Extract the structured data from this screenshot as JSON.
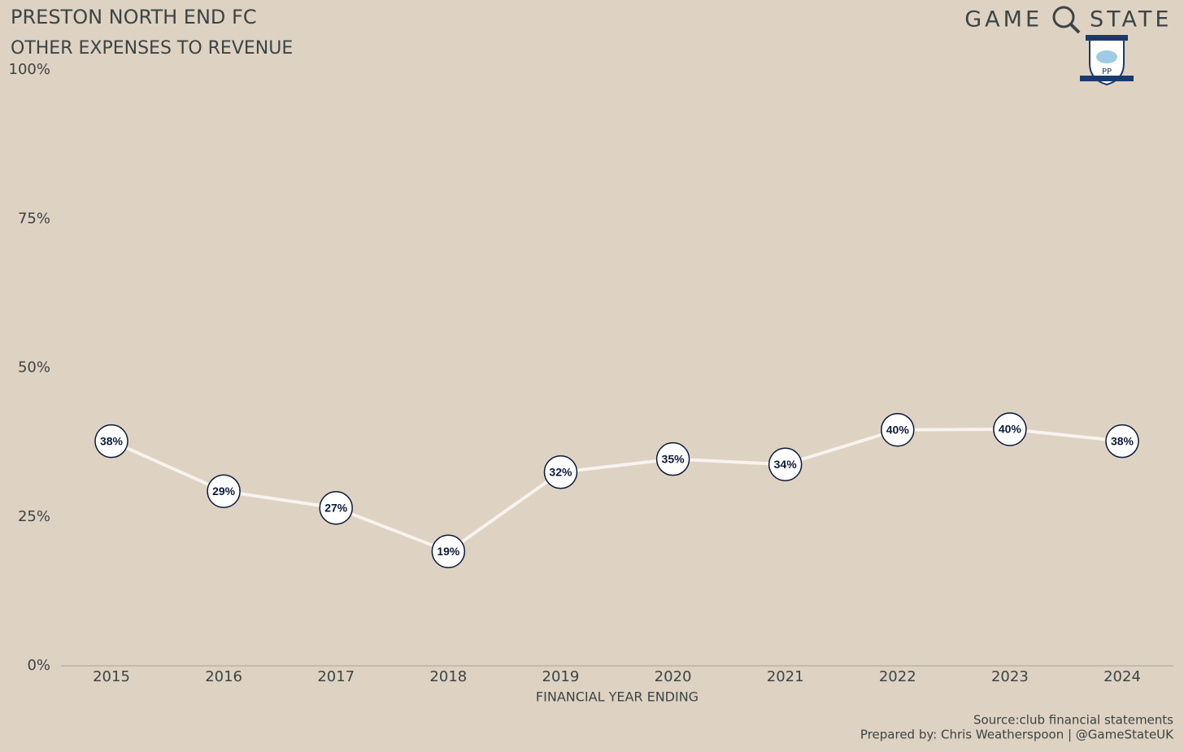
{
  "chart_data": {
    "type": "line",
    "title": "PRESTON NORTH END FC",
    "subtitle": "OTHER EXPENSES TO REVENUE",
    "xlabel": "FINANCIAL YEAR ENDING",
    "source": "Source:club financial statements",
    "credit": "Prepared by: Chris Weatherspoon | @GameStateUK",
    "brand": [
      "GAME",
      "STATE"
    ],
    "crest": "PP",
    "categories": [
      "2015",
      "2016",
      "2017",
      "2018",
      "2019",
      "2020",
      "2021",
      "2022",
      "2023",
      "2024"
    ],
    "series": [
      {
        "name": "Other expenses to revenue",
        "color": "#f7f3ee",
        "values": [
          37.7,
          29.3,
          26.5,
          19.2,
          32.5,
          34.7,
          33.8,
          39.6,
          39.7,
          37.7
        ],
        "value_labels": [
          "38%",
          "29%",
          "27%",
          "19%",
          "32%",
          "35%",
          "34%",
          "40%",
          "40%",
          "38%"
        ]
      }
    ],
    "ylim": [
      0,
      100
    ],
    "yticks": [
      {
        "value": 0,
        "label": "0%"
      },
      {
        "value": 25,
        "label": "25%"
      },
      {
        "value": 50,
        "label": "50%"
      },
      {
        "value": 75,
        "label": "75%"
      },
      {
        "value": 100,
        "label": "100%"
      }
    ],
    "grid": false
  }
}
